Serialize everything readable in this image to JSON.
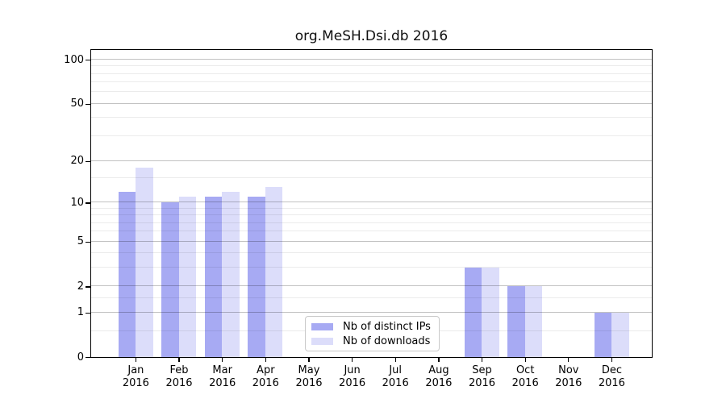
{
  "figure": {
    "title": "org.MeSH.Dsi.db 2016"
  },
  "chart_data": {
    "type": "bar",
    "title": "org.MeSH.Dsi.db 2016",
    "categories": [
      "Jan",
      "Feb",
      "Mar",
      "Apr",
      "May",
      "Jun",
      "Jul",
      "Aug",
      "Sep",
      "Oct",
      "Nov",
      "Dec"
    ],
    "category_year": "2016",
    "series": [
      {
        "name": "Nb of distinct IPs",
        "color": "#a7aaf3",
        "values": [
          12,
          10,
          11,
          11,
          0,
          0,
          0,
          0,
          3,
          2,
          0,
          1
        ]
      },
      {
        "name": "Nb of downloads",
        "color": "#dcddfa",
        "values": [
          18,
          11,
          12,
          13,
          0,
          0,
          0,
          0,
          3,
          2,
          0,
          1
        ]
      }
    ],
    "xlabel": "",
    "ylabel": "",
    "y_axis": {
      "scale": "log1p",
      "max": 115,
      "ticks": [
        0,
        1,
        2,
        5,
        10,
        20,
        50,
        100
      ],
      "major_gridlines": [
        1,
        2,
        5,
        10,
        20,
        50,
        100
      ],
      "minor_gridlines": [
        0.5,
        1.5,
        3,
        4,
        6,
        7,
        8,
        9,
        15,
        30,
        40,
        60,
        70,
        80,
        90
      ]
    },
    "grid": "horizontal, drawn over bars",
    "legend_position": "lower center"
  }
}
